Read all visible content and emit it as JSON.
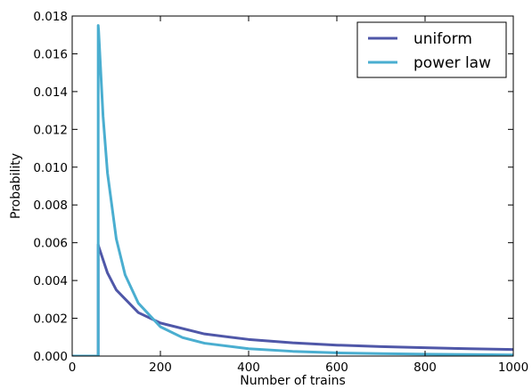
{
  "chart_data": {
    "type": "line",
    "title": "",
    "xlabel": "Number of trains",
    "ylabel": "Probability",
    "xlim": [
      0,
      1000
    ],
    "ylim": [
      0,
      0.018
    ],
    "xticks": [
      "0",
      "200",
      "400",
      "600",
      "800",
      "1000"
    ],
    "yticks": [
      "0.000",
      "0.002",
      "0.004",
      "0.006",
      "0.008",
      "0.010",
      "0.012",
      "0.014",
      "0.016",
      "0.018"
    ],
    "grid": false,
    "legend_position": "top-right",
    "series": [
      {
        "name": "uniform",
        "color": "#4f57a8",
        "x": [
          0,
          59,
          59,
          60,
          80,
          100,
          150,
          200,
          300,
          400,
          500,
          600,
          700,
          800,
          900,
          1000
        ],
        "y": [
          0,
          0,
          0.0059,
          0.0058,
          0.0044,
          0.0035,
          0.0023,
          0.00175,
          0.00117,
          0.00088,
          0.0007,
          0.00058,
          0.0005,
          0.00044,
          0.00039,
          0.00035
        ]
      },
      {
        "name": "power law",
        "color": "#4aaed0",
        "x": [
          0,
          59,
          59,
          60,
          70,
          80,
          100,
          120,
          150,
          200,
          250,
          300,
          400,
          500,
          600,
          700,
          800,
          900,
          1000
        ],
        "y": [
          0,
          0,
          0.0175,
          0.0172,
          0.0127,
          0.0097,
          0.0062,
          0.0043,
          0.0028,
          0.00155,
          0.00098,
          0.00068,
          0.00039,
          0.00025,
          0.00017,
          0.00013,
          0.0001,
          8e-05,
          6e-05
        ]
      }
    ]
  }
}
